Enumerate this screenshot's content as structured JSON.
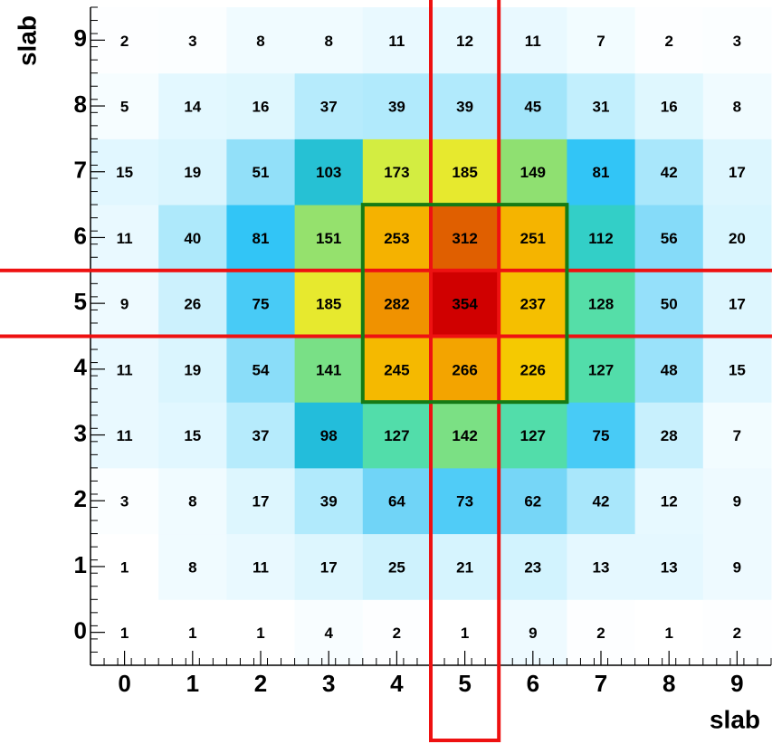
{
  "chart_data": {
    "type": "heatmap",
    "x_label": "slab",
    "y_label": "slab",
    "x": [
      0,
      1,
      2,
      3,
      4,
      5,
      6,
      7,
      8,
      9
    ],
    "y": [
      0,
      1,
      2,
      3,
      4,
      5,
      6,
      7,
      8,
      9
    ],
    "z": [
      [
        1,
        1,
        1,
        4,
        2,
        1,
        9,
        2,
        1,
        2
      ],
      [
        1,
        8,
        11,
        17,
        25,
        21,
        23,
        13,
        13,
        9
      ],
      [
        3,
        8,
        17,
        39,
        64,
        73,
        62,
        42,
        12,
        9
      ],
      [
        11,
        15,
        37,
        98,
        127,
        142,
        127,
        75,
        28,
        7
      ],
      [
        11,
        19,
        54,
        141,
        245,
        266,
        226,
        127,
        48,
        15
      ],
      [
        9,
        26,
        75,
        185,
        282,
        354,
        237,
        128,
        50,
        17
      ],
      [
        11,
        40,
        81,
        151,
        253,
        312,
        251,
        112,
        56,
        20
      ],
      [
        15,
        19,
        51,
        103,
        173,
        185,
        149,
        81,
        42,
        17
      ],
      [
        5,
        14,
        16,
        37,
        39,
        39,
        45,
        31,
        16,
        8
      ],
      [
        2,
        3,
        8,
        8,
        11,
        12,
        11,
        7,
        2,
        3
      ]
    ],
    "xlim": [
      -0.5,
      9.5
    ],
    "ylim": [
      -0.5,
      9.5
    ],
    "xticks": [
      0,
      1,
      2,
      3,
      4,
      5,
      6,
      7,
      8,
      9
    ],
    "yticks": [
      0,
      1,
      2,
      3,
      4,
      5,
      6,
      7,
      8,
      9
    ],
    "column_highlight": {
      "x": 5,
      "color": "#ee1111"
    },
    "row_highlight": {
      "y": 5,
      "color": "#ee1111"
    },
    "box_highlight": {
      "x": [
        4,
        6
      ],
      "y": [
        4,
        6
      ],
      "color": "#157a15"
    }
  }
}
